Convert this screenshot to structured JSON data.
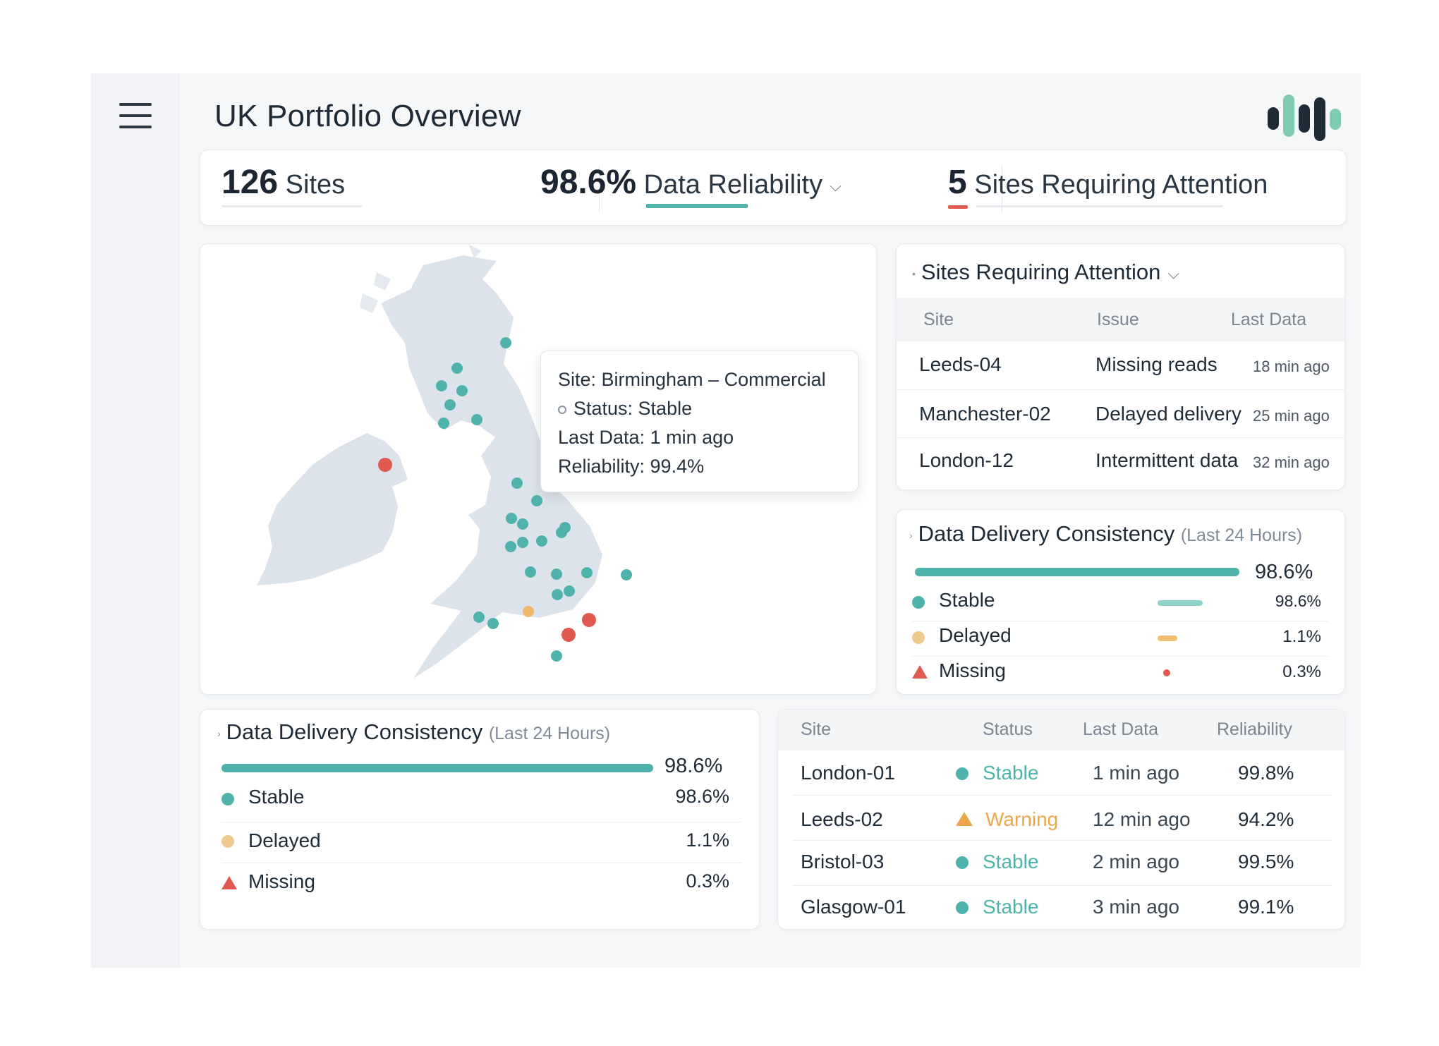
{
  "header": {
    "title": "UK Portfolio Overview",
    "logo": "bars-logo-icon",
    "menu_icon": "hamburger-menu-icon"
  },
  "kpis": {
    "sites": {
      "value": "126",
      "label": "Sites"
    },
    "reliability": {
      "value": "98.6%",
      "label": "Data Reliability"
    },
    "attention": {
      "value": "5",
      "label": "Sites Requiring Attention"
    }
  },
  "map": {
    "tooltip": {
      "site": "Site: Birmingham – Commercial",
      "status": "Status: Stable",
      "last_data": "Last Data: 1 min ago",
      "reliability": "Reliability: 99.4%"
    },
    "colors": {
      "stable": "#4fb3ac",
      "delayed": "#f0b86b",
      "missing": "#e05a52",
      "land": "#dde3ea"
    }
  },
  "attention_panel": {
    "title": "Sites Requiring Attention",
    "columns": [
      "Site",
      "Issue",
      "Last Data"
    ],
    "rows": [
      {
        "site": "Leeds-04",
        "issue": "Missing reads",
        "last": "18 min ago"
      },
      {
        "site": "Manchester-02",
        "issue": "Delayed delivery",
        "last": "25 min ago"
      },
      {
        "site": "London-12",
        "issue": "Intermittent data",
        "last": "32 min ago"
      }
    ]
  },
  "consistency": {
    "title": "Data Delivery Consistency",
    "period": "(Last 24 Hours)",
    "overall": "98.6%",
    "overall_fraction": 0.986,
    "items": [
      {
        "label": "Stable",
        "value": "98.6%",
        "color": "#4fb3ac"
      },
      {
        "label": "Delayed",
        "value": "1.1%",
        "color": "#f0b86b"
      },
      {
        "label": "Missing",
        "value": "0.3%",
        "color": "#e05a52"
      }
    ]
  },
  "sites_table": {
    "columns": [
      "Site",
      "Status",
      "Last Data",
      "Reliability"
    ],
    "rows": [
      {
        "site": "London-01",
        "status": "Stable",
        "last": "1 min ago",
        "reliability": "99.8%"
      },
      {
        "site": "Leeds-02",
        "status": "Warning",
        "last": "12 min ago",
        "reliability": "94.2%"
      },
      {
        "site": "Bristol-03",
        "status": "Stable",
        "last": "2 min ago",
        "reliability": "99.5%"
      },
      {
        "site": "Glasgow-01",
        "status": "Stable",
        "last": "3 min ago",
        "reliability": "99.1%"
      }
    ],
    "status_colors": {
      "Stable": "#4fb3ac",
      "Warning": "#eda64a"
    }
  }
}
